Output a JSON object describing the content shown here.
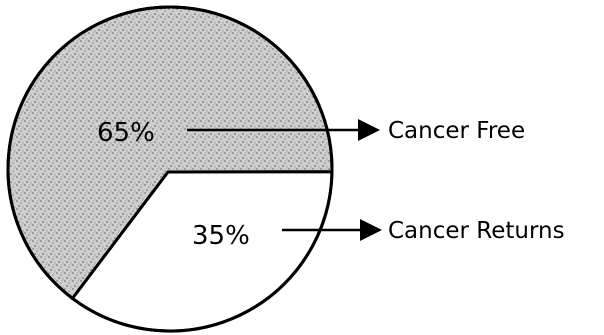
{
  "chart_data": {
    "type": "pie",
    "slices": [
      {
        "label": "Cancer Free",
        "value": 65,
        "value_label": "65%",
        "fill": "stippled-gray"
      },
      {
        "label": "Cancer Returns",
        "value": 35,
        "value_label": "35%",
        "fill": "white"
      }
    ],
    "title": "",
    "legend": "right, arrow callouts",
    "colors": {
      "outline": "#000000",
      "shade": "#bdbdbd",
      "background": "#ffffff"
    }
  }
}
